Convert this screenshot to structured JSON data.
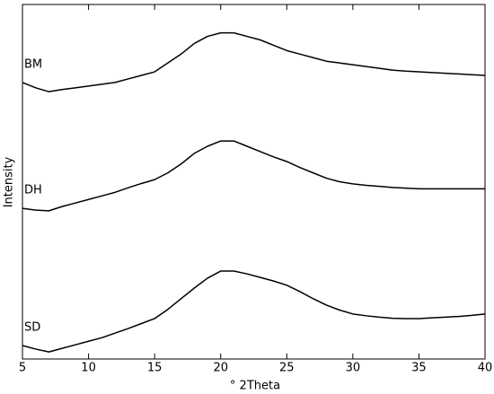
{
  "chart_data": {
    "type": "line",
    "xlabel": "° 2Theta",
    "ylabel": "Intensity",
    "x": [
      5,
      6,
      7,
      8,
      9,
      10,
      11,
      12,
      13,
      14,
      15,
      16,
      17,
      18,
      19,
      20,
      21,
      22,
      23,
      24,
      25,
      26,
      27,
      28,
      29,
      30,
      31,
      32,
      33,
      34,
      35,
      36,
      37,
      38,
      39,
      40
    ],
    "series": [
      {
        "name": "BM",
        "color": "#000000",
        "values": [
          78,
          76.5,
          75.4,
          76,
          76.5,
          77,
          77.5,
          78,
          79,
          80,
          81,
          83.5,
          86,
          89,
          91,
          92,
          92,
          91,
          90,
          88.5,
          87,
          86,
          85,
          84,
          83.5,
          83,
          82.5,
          82,
          81.5,
          81.2,
          81,
          80.8,
          80.6,
          80.4,
          80.2,
          80
        ]
      },
      {
        "name": "DH",
        "color": "#000000",
        "values": [
          42.5,
          42,
          41.8,
          43,
          44,
          45,
          46,
          47,
          48.3,
          49.5,
          50.6,
          52.5,
          55,
          58,
          60,
          61.5,
          61.5,
          60,
          58.5,
          57,
          55.7,
          54,
          52.5,
          51,
          50,
          49.4,
          49,
          48.7,
          48.4,
          48.2,
          48,
          48,
          48,
          48,
          48,
          48
        ]
      },
      {
        "name": "SD",
        "color": "#000000",
        "values": [
          3.8,
          2.8,
          2,
          3,
          4,
          5,
          6,
          7.3,
          8.6,
          10,
          11.4,
          14,
          17,
          20,
          22.8,
          24.8,
          24.8,
          24,
          23,
          22,
          20.8,
          19,
          17,
          15.2,
          13.8,
          12.7,
          12.2,
          11.8,
          11.5,
          11.4,
          11.4,
          11.6,
          11.8,
          12,
          12.3,
          12.7
        ]
      }
    ],
    "xlim": [
      5,
      40
    ],
    "xticks": [
      5,
      10,
      15,
      20,
      25,
      30,
      35,
      40
    ],
    "ylim": [
      0,
      100
    ]
  }
}
